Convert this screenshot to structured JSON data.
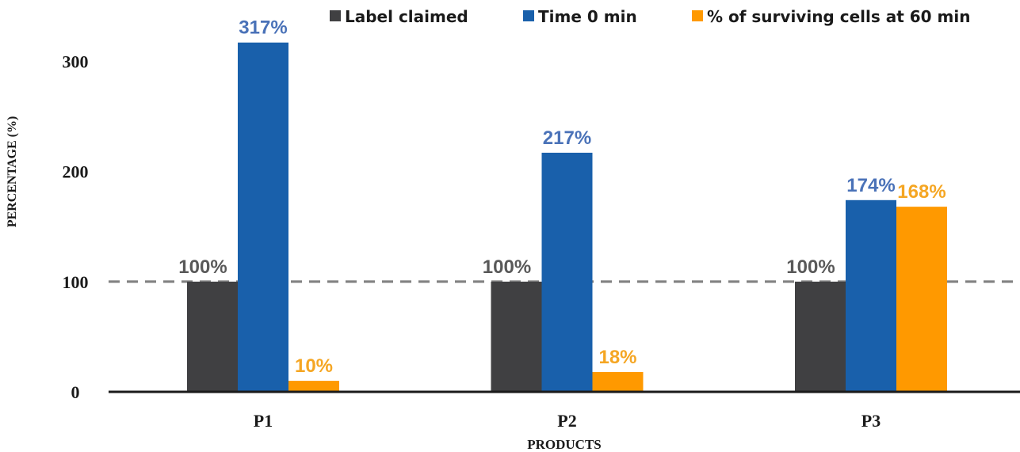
{
  "chart_data": {
    "type": "bar",
    "title": "",
    "xlabel": "PRODUCTS",
    "ylabel": "PERCENTAGE (%)",
    "categories": [
      "P1",
      "P2",
      "P3"
    ],
    "ylim": [
      0,
      340
    ],
    "yticks": [
      0,
      100,
      200,
      300
    ],
    "reference_line": {
      "value": 100,
      "style": "dashed",
      "color": "#808080"
    },
    "legend_position": "top",
    "grid": false,
    "series": [
      {
        "name": "Label claimed",
        "color": "#404042",
        "label_color": "#595959",
        "values": [
          100,
          100,
          100
        ],
        "labels": [
          "100%",
          "100%",
          "100%"
        ]
      },
      {
        "name": "Time 0 min",
        "color": "#1960ab",
        "label_color": "#4a72b8",
        "values": [
          317,
          217,
          174
        ],
        "labels": [
          "317%",
          "217%",
          "174%"
        ]
      },
      {
        "name": "% of surviving cells at 60 min",
        "color": "#ff9900",
        "label_color": "#f5a623",
        "values": [
          10,
          18,
          168
        ],
        "labels": [
          "10%",
          "18%",
          "168%"
        ]
      }
    ]
  }
}
